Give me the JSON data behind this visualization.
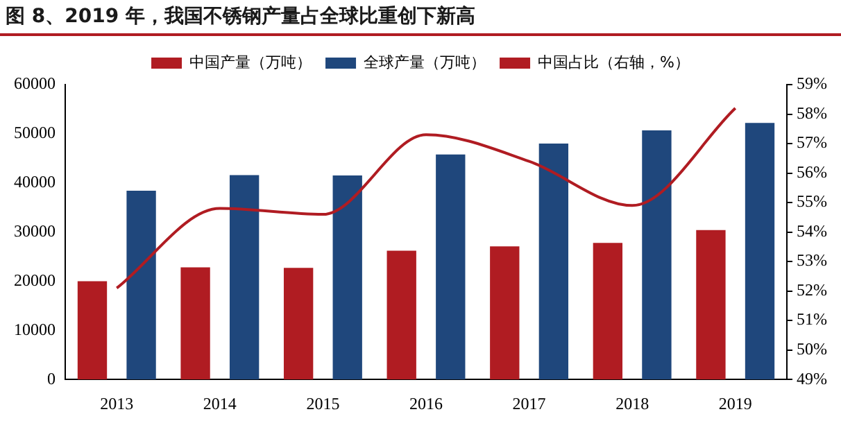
{
  "chart_data": {
    "type": "bar",
    "title": "图 8、2019 年，我国不锈钢产量占全球比重创下新高",
    "categories": [
      "2013",
      "2014",
      "2015",
      "2016",
      "2017",
      "2018",
      "2019"
    ],
    "series": [
      {
        "name": "中国产量（万吨）",
        "color": "#b01c22",
        "values": [
          20000,
          22800,
          22700,
          26200,
          27100,
          27800,
          30400
        ]
      },
      {
        "name": "全球产量（万吨）",
        "color": "#1f477c",
        "values": [
          38400,
          41600,
          41500,
          45800,
          48000,
          50700,
          52200
        ]
      },
      {
        "name": "中国占比（右轴，%）",
        "type": "line",
        "axis": "y2",
        "color": "#b01c22",
        "values": [
          52.1,
          54.8,
          54.6,
          57.3,
          56.4,
          54.9,
          58.2
        ]
      }
    ],
    "ylim": [
      0,
      60000
    ],
    "yticks": [
      0,
      10000,
      20000,
      30000,
      40000,
      50000,
      60000
    ],
    "y2lim": [
      49,
      59
    ],
    "y2ticks": [
      {
        "value": 49,
        "label": "49%"
      },
      {
        "value": 50,
        "label": "50%"
      },
      {
        "value": 51,
        "label": "51%"
      },
      {
        "value": 52,
        "label": "52%"
      },
      {
        "value": 53,
        "label": "53%"
      },
      {
        "value": 54,
        "label": "54%"
      },
      {
        "value": 55,
        "label": "55%"
      },
      {
        "value": 56,
        "label": "56%"
      },
      {
        "value": 57,
        "label": "57%"
      },
      {
        "value": 58,
        "label": "58%"
      },
      {
        "value": 59,
        "label": "59%"
      }
    ],
    "grid": false,
    "legend": "top",
    "marker": "none"
  }
}
